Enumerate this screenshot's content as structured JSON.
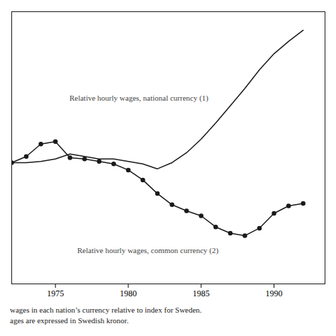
{
  "chart_data": {
    "type": "line",
    "x": [
      1972,
      1973,
      1974,
      1975,
      1976,
      1977,
      1978,
      1979,
      1980,
      1981,
      1982,
      1983,
      1984,
      1985,
      1986,
      1987,
      1988,
      1989,
      1990,
      1991,
      1992
    ],
    "series": [
      {
        "color": "#1a1a1a",
        "marker": "none",
        "values": [
          0.44,
          0.44,
          0.445,
          0.455,
          0.475,
          0.465,
          0.455,
          0.455,
          0.445,
          0.435,
          0.415,
          0.44,
          0.48,
          0.535,
          0.6,
          0.67,
          0.74,
          0.815,
          0.88,
          0.93,
          0.975
        ]
      },
      {
        "color": "#1a1a1a",
        "marker": "circle",
        "values": [
          0.44,
          0.465,
          0.515,
          0.525,
          0.46,
          0.455,
          0.445,
          0.435,
          0.41,
          0.37,
          0.315,
          0.27,
          0.245,
          0.225,
          0.18,
          0.155,
          0.145,
          0.175,
          0.235,
          0.265,
          0.275
        ]
      }
    ],
    "xlim": [
      1972.0,
      1993.5
    ],
    "ylim": [
      -0.05,
      1.05
    ],
    "xticks": [
      1975,
      1980,
      1985,
      1990
    ],
    "tick_labels": "x",
    "annotations": [
      {
        "text": "Relative hourly wages, national currency (1)",
        "x": 1985.5,
        "y": 0.7
      },
      {
        "text": "Relative hourly wages, common currency (2)",
        "x": 1976.5,
        "y": 0.085
      }
    ],
    "footnotes": [
      "wages in each nation’s currency relative to index for Sweden.",
      "ages are expressed in Swedish kronor."
    ]
  }
}
